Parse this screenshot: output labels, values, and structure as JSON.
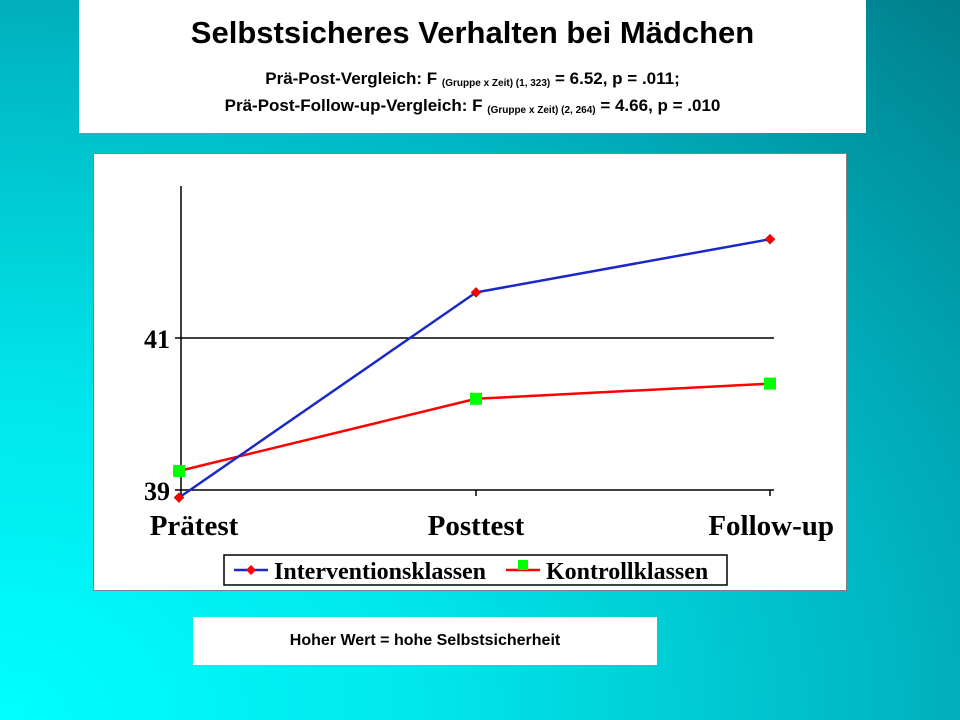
{
  "title": {
    "main": "Selbstsicheres Verhalten bei Mädchen",
    "line1_prefix": "Prä-Post-Vergleich: F",
    "line1_sub": "(Gruppe x Zeit) (1, 323)",
    "line1_suffix": "= 6.52, p = .011;",
    "line2_prefix": "Prä-Post-Follow-up-Vergleich: F",
    "line2_sub": "(Gruppe x Zeit) (2, 264)",
    "line2_suffix": "= 4.66, p = .010"
  },
  "note": "Hoher Wert = hohe Selbstsicherheit",
  "chart_data": {
    "type": "line",
    "categories": [
      "Prätest",
      "Posttest",
      "Follow-up"
    ],
    "series": [
      {
        "name": "Interventionsklassen",
        "values": [
          38.9,
          41.6,
          42.3
        ],
        "color": "#1a28c8",
        "marker": "diamond",
        "marker_color": "#ff0000"
      },
      {
        "name": "Kontrollklassen",
        "values": [
          39.25,
          40.2,
          40.4
        ],
        "color": "#ff0000",
        "marker": "square",
        "marker_color": "#00ff00"
      }
    ],
    "yticks": [
      "39",
      "41"
    ],
    "ylim": [
      39,
      43
    ],
    "grid": "horizontal at 41",
    "legend": "bottom"
  }
}
